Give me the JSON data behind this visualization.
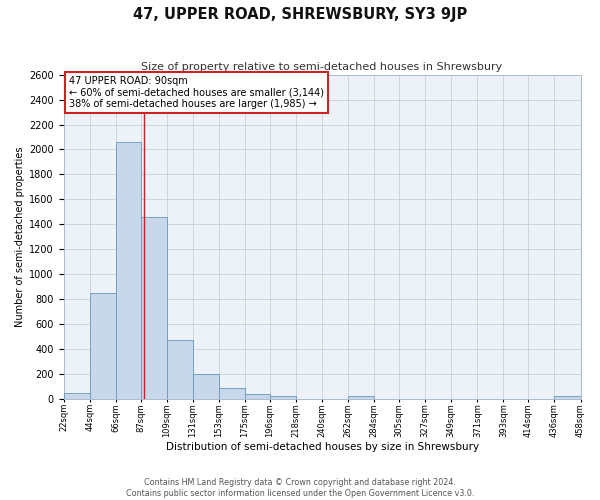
{
  "title": "47, UPPER ROAD, SHREWSBURY, SY3 9JP",
  "subtitle": "Size of property relative to semi-detached houses in Shrewsbury",
  "xlabel": "Distribution of semi-detached houses by size in Shrewsbury",
  "ylabel": "Number of semi-detached properties",
  "bin_edges": [
    22,
    44,
    66,
    87,
    109,
    131,
    153,
    175,
    196,
    218,
    240,
    262,
    284,
    305,
    327,
    349,
    371,
    393,
    414,
    436,
    458
  ],
  "bin_counts": [
    50,
    850,
    2060,
    1460,
    470,
    200,
    90,
    40,
    20,
    0,
    0,
    20,
    0,
    0,
    0,
    0,
    0,
    0,
    0,
    20
  ],
  "bar_facecolor": "#c8d8ea",
  "bar_edgecolor": "#6699bb",
  "property_value": 90,
  "vline_color": "#cc2222",
  "annotation_box_edgecolor": "#cc2222",
  "annotation_title": "47 UPPER ROAD: 90sqm",
  "annotation_line1": "← 60% of semi-detached houses are smaller (3,144)",
  "annotation_line2": "38% of semi-detached houses are larger (1,985) →",
  "ylim": [
    0,
    2600
  ],
  "yticks": [
    0,
    200,
    400,
    600,
    800,
    1000,
    1200,
    1400,
    1600,
    1800,
    2000,
    2200,
    2400,
    2600
  ],
  "grid_color": "#c8d0de",
  "plot_bg_color": "#edf1f8",
  "footer_line1": "Contains HM Land Registry data © Crown copyright and database right 2024.",
  "footer_line2": "Contains public sector information licensed under the Open Government Licence v3.0."
}
